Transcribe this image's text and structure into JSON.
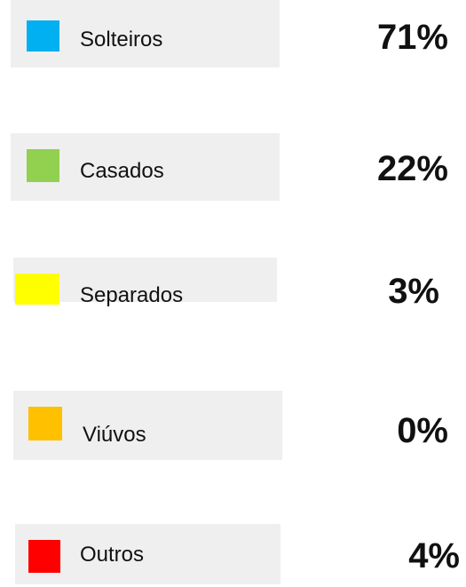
{
  "items": [
    {
      "label": "Solteiros",
      "color": "#00b0f0",
      "value": "71%"
    },
    {
      "label": "Casados",
      "color": "#92d050",
      "value": "22%"
    },
    {
      "label": "Separados",
      "color": "#ffff00",
      "value": "3%"
    },
    {
      "label": "Viúvos",
      "color": "#ffc000",
      "value": "0%"
    },
    {
      "label": "Outros",
      "color": "#ff0000",
      "value": "4%"
    }
  ]
}
